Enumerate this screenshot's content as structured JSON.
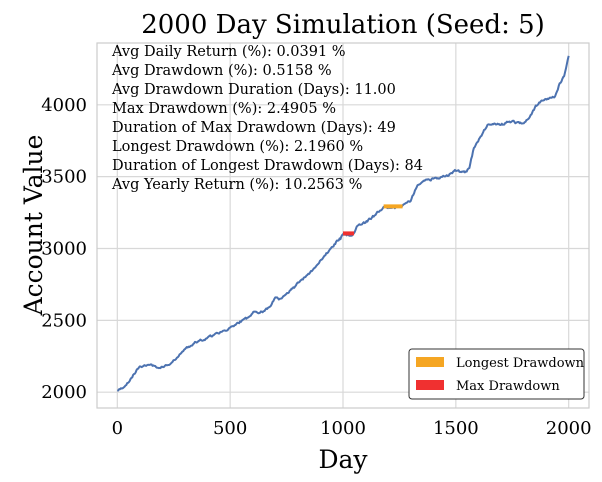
{
  "chart_data": {
    "type": "line",
    "title": "2000 Day Simulation (Seed: 5)",
    "xlabel": "Day",
    "ylabel": "Account Value",
    "xlim": [
      -90,
      2090
    ],
    "ylim": [
      1890,
      4430
    ],
    "xticks": [
      0,
      500,
      1000,
      1500,
      2000
    ],
    "yticks": [
      2000,
      2500,
      3000,
      3500,
      4000
    ],
    "grid": true,
    "legend_position": "lower-right",
    "stats": [
      "Avg Daily Return (%): 0.0391 %",
      "Avg Drawdown (%): 0.5158 %",
      "Avg Drawdown Duration (Days): 11.00",
      "Max Drawdown (%): 2.4905 %",
      "Duration of Max Drawdown (Days): 49",
      "Longest Drawdown (%): 2.1960 %",
      "Duration of Longest Drawdown (Days): 84",
      "Avg Yearly Return (%): 10.2563 %"
    ],
    "series": [
      {
        "color": "#4c72b0",
        "anchors": [
          [
            0,
            2010
          ],
          [
            40,
            2050
          ],
          [
            70,
            2120
          ],
          [
            100,
            2180
          ],
          [
            140,
            2190
          ],
          [
            180,
            2170
          ],
          [
            230,
            2190
          ],
          [
            260,
            2230
          ],
          [
            300,
            2300
          ],
          [
            340,
            2340
          ],
          [
            400,
            2380
          ],
          [
            460,
            2420
          ],
          [
            500,
            2450
          ],
          [
            540,
            2480
          ],
          [
            580,
            2520
          ],
          [
            610,
            2560
          ],
          [
            640,
            2560
          ],
          [
            680,
            2600
          ],
          [
            700,
            2660
          ],
          [
            720,
            2650
          ],
          [
            780,
            2730
          ],
          [
            830,
            2800
          ],
          [
            870,
            2860
          ],
          [
            910,
            2930
          ],
          [
            950,
            3010
          ],
          [
            985,
            3070
          ],
          [
            1000,
            3100
          ],
          [
            1020,
            3100
          ],
          [
            1040,
            3090
          ],
          [
            1060,
            3150
          ],
          [
            1100,
            3180
          ],
          [
            1140,
            3230
          ],
          [
            1180,
            3290
          ],
          [
            1230,
            3280
          ],
          [
            1264,
            3300
          ],
          [
            1300,
            3330
          ],
          [
            1330,
            3440
          ],
          [
            1370,
            3480
          ],
          [
            1420,
            3490
          ],
          [
            1460,
            3510
          ],
          [
            1500,
            3540
          ],
          [
            1540,
            3530
          ],
          [
            1560,
            3560
          ],
          [
            1580,
            3700
          ],
          [
            1610,
            3780
          ],
          [
            1640,
            3860
          ],
          [
            1670,
            3870
          ],
          [
            1700,
            3860
          ],
          [
            1730,
            3880
          ],
          [
            1760,
            3880
          ],
          [
            1790,
            3870
          ],
          [
            1820,
            3900
          ],
          [
            1850,
            3980
          ],
          [
            1880,
            4030
          ],
          [
            1910,
            4040
          ],
          [
            1940,
            4060
          ],
          [
            1960,
            4150
          ],
          [
            1980,
            4200
          ],
          [
            2000,
            4340
          ]
        ]
      }
    ],
    "highlights": [
      {
        "name": "Longest Drawdown",
        "color": "#f5a623",
        "x_start": 1180,
        "x_end": 1264,
        "y": 3293
      },
      {
        "name": "Max Drawdown",
        "color": "#f03030",
        "x_start": 1000,
        "x_end": 1049,
        "y": 3105
      }
    ],
    "legend": [
      "Longest Drawdown",
      "Max Drawdown"
    ]
  }
}
